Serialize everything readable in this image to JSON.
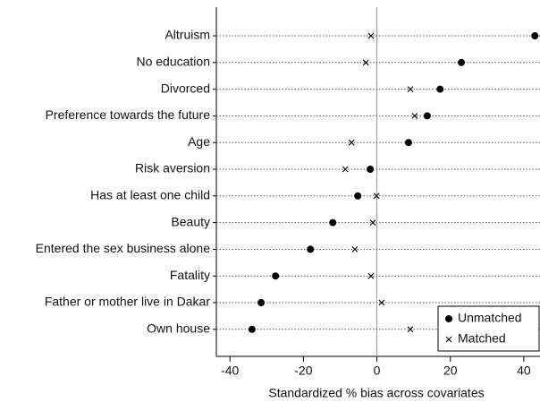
{
  "chart_data": {
    "type": "dot",
    "x_label": "Standardized % bias across covariates",
    "categories": [
      "Altruism",
      "No education",
      "Divorced",
      "Preference towards the future",
      "Age",
      "Risk aversion",
      "Has at least one child",
      "Beauty",
      "Entered the sex business alone",
      "Fatality",
      "Father or mother live in Dakar",
      "Own house"
    ],
    "series": [
      {
        "name": "Unmatched",
        "color": "#000000",
        "marker": "circle",
        "values": [
          43,
          23,
          17.2,
          13.7,
          8.6,
          -1.8,
          -5.2,
          -12,
          -18.1,
          -27.6,
          -31.5,
          -34
        ]
      },
      {
        "name": "Matched",
        "color": "#000000",
        "marker": "x",
        "values": [
          -1.6,
          -3,
          9.1,
          10.3,
          -6.9,
          -8.6,
          -0.1,
          -1.1,
          -6,
          -1.6,
          1.3,
          9.1
        ]
      }
    ],
    "xlim": [
      -43.7,
      44.4
    ],
    "xticks": [
      -40,
      -20,
      0,
      20,
      40
    ],
    "legend": "lower right"
  }
}
